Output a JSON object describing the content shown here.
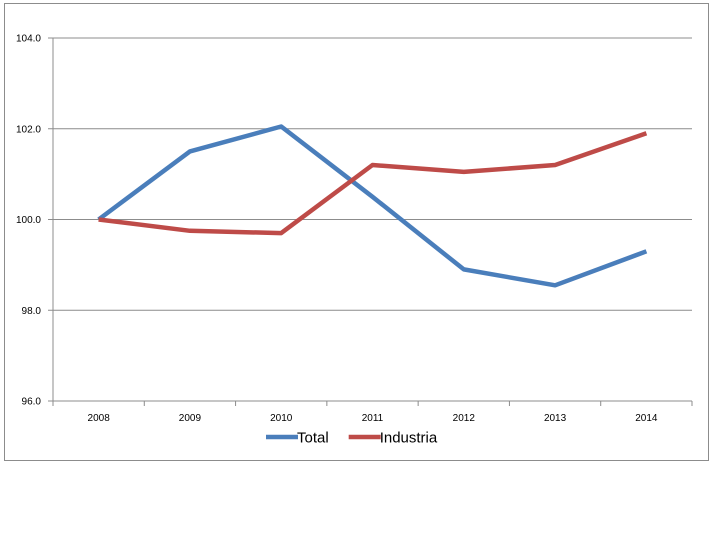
{
  "chart_data": {
    "type": "line",
    "title": "",
    "xlabel": "",
    "ylabel": "",
    "categories": [
      "2008",
      "2009",
      "2010",
      "2011",
      "2012",
      "2013",
      "2014"
    ],
    "ylim": [
      96.0,
      104.0
    ],
    "yticks": [
      "96.0",
      "98.0",
      "100.0",
      "102.0",
      "104.0"
    ],
    "grid": true,
    "legend_position": "bottom",
    "series": [
      {
        "name": "Total",
        "color": "#4a7ebb",
        "values": [
          100.0,
          101.5,
          102.05,
          100.5,
          98.9,
          98.55,
          99.3
        ]
      },
      {
        "name": "Industria",
        "color": "#be4b48",
        "values": [
          100.0,
          99.75,
          99.7,
          101.2,
          101.05,
          101.2,
          101.9
        ]
      }
    ]
  }
}
